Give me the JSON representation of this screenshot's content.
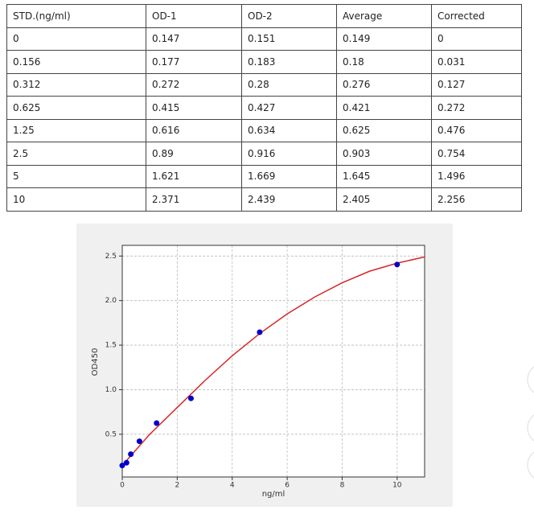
{
  "table": {
    "header": [
      "STD.(ng/ml)",
      "OD-1",
      "OD-2",
      "Average",
      "Corrected"
    ],
    "rows": [
      [
        "0",
        "0.147",
        "0.151",
        "0.149",
        "0"
      ],
      [
        "0.156",
        "0.177",
        "0.183",
        "0.18",
        "0.031"
      ],
      [
        "0.312",
        "0.272",
        "0.28",
        "0.276",
        "0.127"
      ],
      [
        "0.625",
        "0.415",
        "0.427",
        "0.421",
        "0.272"
      ],
      [
        "1.25",
        "0.616",
        "0.634",
        "0.625",
        "0.476"
      ],
      [
        "2.5",
        "0.89",
        "0.916",
        "0.903",
        "0.754"
      ],
      [
        "5",
        "1.621",
        "1.669",
        "1.645",
        "1.496"
      ],
      [
        "10",
        "2.371",
        "2.439",
        "2.405",
        "2.256"
      ]
    ]
  },
  "chart_data": {
    "type": "scatter",
    "xlabel": "ng/ml",
    "ylabel": "OD450",
    "xlim": [
      0,
      11
    ],
    "ylim": [
      0.02,
      2.62
    ],
    "xticks": [
      0,
      2,
      4,
      6,
      8,
      10
    ],
    "yticks": [
      0.5,
      {
        "value": 1,
        "label": "1.0"
      },
      1.5,
      {
        "value": 2,
        "label": "2.0"
      },
      2.5
    ],
    "grid": true,
    "series": [
      {
        "kind": "points",
        "color": "#0000cc",
        "x": [
          0,
          0.156,
          0.312,
          0.625,
          1.25,
          2.5,
          5,
          10
        ],
        "values": [
          0.149,
          0.18,
          0.276,
          0.421,
          0.625,
          0.903,
          1.645,
          2.405
        ]
      },
      {
        "kind": "line",
        "color": "#d62728",
        "x": [
          0,
          1,
          2,
          3,
          4,
          5,
          6,
          7,
          8,
          9,
          10,
          11
        ],
        "values": [
          0.15,
          0.5,
          0.8,
          1.1,
          1.38,
          1.63,
          1.85,
          2.04,
          2.2,
          2.33,
          2.42,
          2.49
        ]
      }
    ]
  }
}
